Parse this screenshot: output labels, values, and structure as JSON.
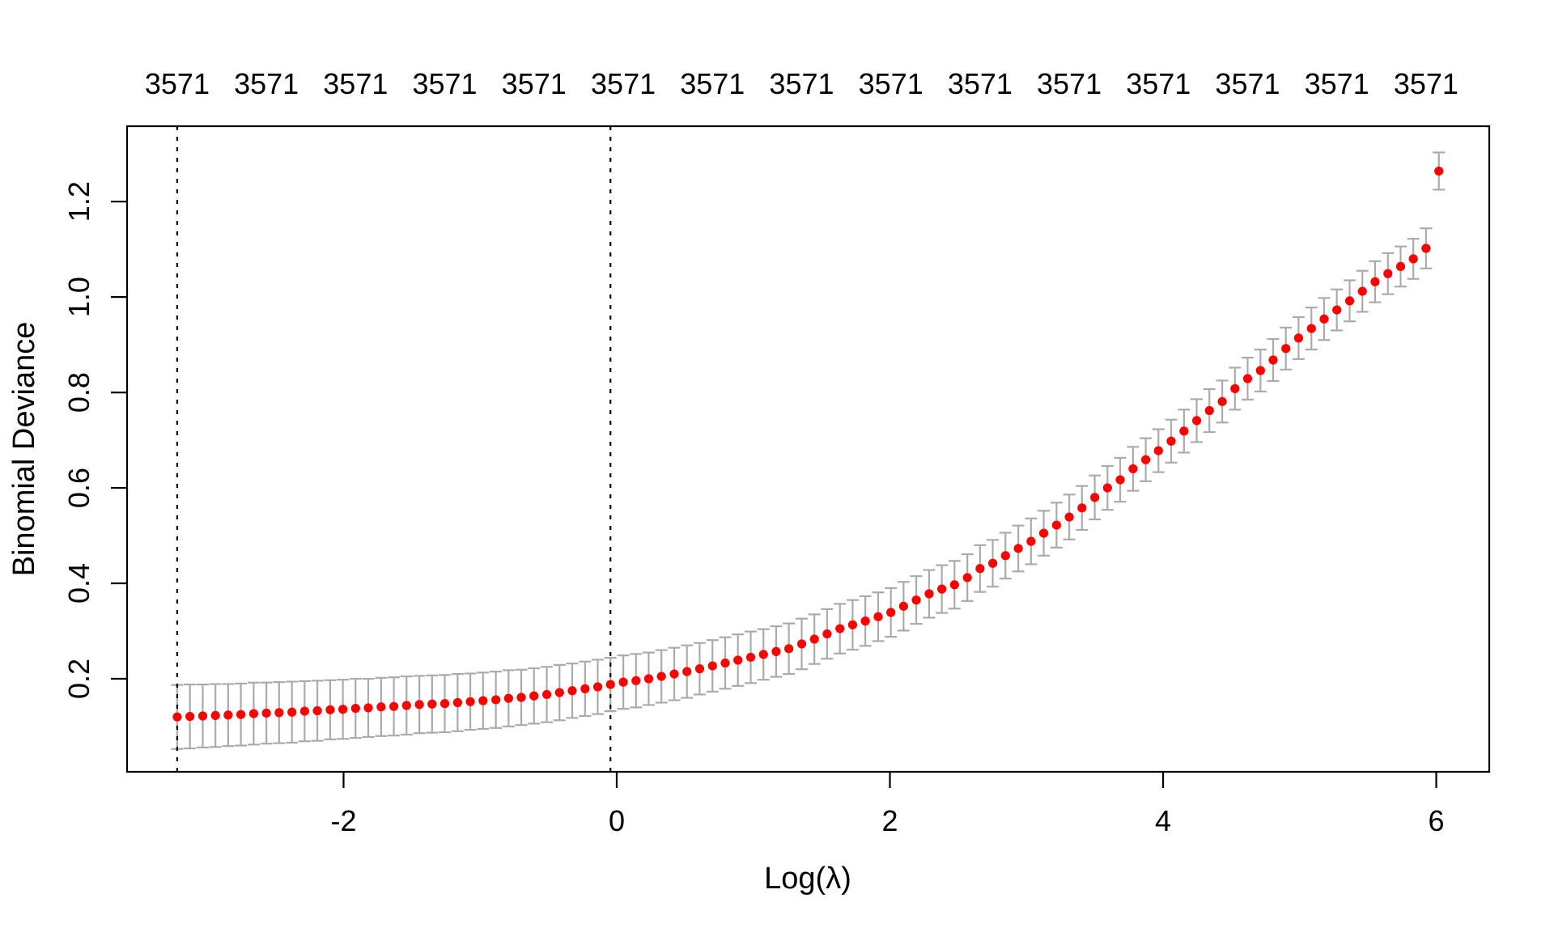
{
  "chart_data": {
    "type": "scatter",
    "title": "",
    "xlabel": "Log(λ)",
    "ylabel": "Binomial Deviance",
    "xlim": [
      -3.585,
      6.388
    ],
    "ylim": [
      0.005,
      1.358
    ],
    "grid": false,
    "legend_position": "none",
    "x_ticks": {
      "values": [
        -2,
        0,
        2,
        4,
        6
      ],
      "labels": [
        "-2",
        "0",
        "2",
        "4",
        "6"
      ]
    },
    "y_ticks": {
      "values": [
        0.2,
        0.4,
        0.6,
        0.8,
        1.0,
        1.2
      ],
      "labels": [
        "0.2",
        "0.4",
        "0.6",
        "0.8",
        "1.0",
        "1.2"
      ]
    },
    "top_axis": {
      "labels": [
        "3571",
        "3571",
        "3571",
        "3571",
        "3571",
        "3571",
        "3571",
        "3571",
        "3571",
        "3571",
        "3571",
        "3571",
        "3571",
        "3571",
        "3571"
      ],
      "x": [
        -3.218,
        -2.565,
        -1.912,
        -1.259,
        -0.606,
        0.048,
        0.701,
        1.354,
        2.007,
        2.66,
        3.313,
        3.966,
        4.619,
        5.272,
        5.925
      ]
    },
    "vlines": [
      {
        "name": "lambda-min-line",
        "x": -3.218,
        "style": "dotted",
        "color": "#000000"
      },
      {
        "name": "lambda-1se-line",
        "x": -0.046,
        "style": "dotted",
        "color": "#000000"
      }
    ],
    "colors": {
      "point": "#FF0000",
      "errorbar": "#ABABAB",
      "axis": "#000000"
    },
    "series": [
      {
        "name": "cv-mean-binomial-deviance",
        "x": [
          -3.218,
          -3.125,
          -3.031,
          -2.938,
          -2.845,
          -2.752,
          -2.658,
          -2.565,
          -2.472,
          -2.378,
          -2.285,
          -2.192,
          -2.098,
          -2.005,
          -1.912,
          -1.819,
          -1.725,
          -1.632,
          -1.539,
          -1.445,
          -1.352,
          -1.259,
          -1.165,
          -1.072,
          -0.979,
          -0.885,
          -0.792,
          -0.699,
          -0.606,
          -0.512,
          -0.419,
          -0.326,
          -0.232,
          -0.139,
          -0.046,
          0.048,
          0.141,
          0.234,
          0.327,
          0.421,
          0.514,
          0.607,
          0.701,
          0.794,
          0.887,
          0.981,
          1.074,
          1.167,
          1.26,
          1.354,
          1.447,
          1.54,
          1.634,
          1.727,
          1.82,
          1.914,
          2.007,
          2.1,
          2.193,
          2.287,
          2.38,
          2.473,
          2.567,
          2.66,
          2.753,
          2.846,
          2.94,
          3.033,
          3.126,
          3.22,
          3.313,
          3.406,
          3.5,
          3.593,
          3.686,
          3.78,
          3.873,
          3.966,
          4.059,
          4.153,
          4.246,
          4.339,
          4.433,
          4.526,
          4.619,
          4.713,
          4.806,
          4.899,
          4.992,
          5.086,
          5.179,
          5.272,
          5.366,
          5.459,
          5.552,
          5.646,
          5.739,
          5.832,
          5.925,
          6.019
        ],
        "y": [
          0.12,
          0.121,
          0.122,
          0.123,
          0.124,
          0.125,
          0.127,
          0.128,
          0.129,
          0.13,
          0.132,
          0.133,
          0.135,
          0.136,
          0.138,
          0.139,
          0.141,
          0.142,
          0.144,
          0.146,
          0.147,
          0.148,
          0.15,
          0.152,
          0.154,
          0.156,
          0.159,
          0.161,
          0.164,
          0.167,
          0.171,
          0.175,
          0.179,
          0.183,
          0.188,
          0.193,
          0.196,
          0.2,
          0.205,
          0.21,
          0.215,
          0.221,
          0.227,
          0.233,
          0.239,
          0.245,
          0.251,
          0.257,
          0.263,
          0.273,
          0.283,
          0.294,
          0.305,
          0.313,
          0.321,
          0.33,
          0.339,
          0.352,
          0.365,
          0.378,
          0.388,
          0.397,
          0.412,
          0.431,
          0.442,
          0.458,
          0.473,
          0.488,
          0.505,
          0.522,
          0.539,
          0.558,
          0.58,
          0.6,
          0.617,
          0.64,
          0.659,
          0.678,
          0.698,
          0.719,
          0.741,
          0.762,
          0.781,
          0.808,
          0.829,
          0.846,
          0.868,
          0.892,
          0.914,
          0.934,
          0.954,
          0.973,
          0.992,
          1.012,
          1.032,
          1.049,
          1.064,
          1.08,
          1.102,
          1.264
        ],
        "se": [
          0.067,
          0.067,
          0.066,
          0.066,
          0.065,
          0.065,
          0.065,
          0.064,
          0.064,
          0.064,
          0.063,
          0.063,
          0.062,
          0.062,
          0.062,
          0.061,
          0.061,
          0.061,
          0.061,
          0.06,
          0.06,
          0.06,
          0.06,
          0.059,
          0.059,
          0.059,
          0.059,
          0.058,
          0.058,
          0.058,
          0.058,
          0.057,
          0.057,
          0.057,
          0.056,
          0.056,
          0.056,
          0.055,
          0.055,
          0.055,
          0.055,
          0.054,
          0.054,
          0.054,
          0.054,
          0.054,
          0.053,
          0.053,
          0.053,
          0.053,
          0.052,
          0.052,
          0.052,
          0.052,
          0.052,
          0.051,
          0.051,
          0.051,
          0.05,
          0.05,
          0.05,
          0.05,
          0.049,
          0.049,
          0.049,
          0.048,
          0.048,
          0.048,
          0.047,
          0.047,
          0.047,
          0.046,
          0.046,
          0.046,
          0.046,
          0.046,
          0.045,
          0.045,
          0.045,
          0.045,
          0.045,
          0.045,
          0.044,
          0.044,
          0.044,
          0.044,
          0.044,
          0.044,
          0.044,
          0.044,
          0.044,
          0.043,
          0.043,
          0.043,
          0.043,
          0.043,
          0.042,
          0.042,
          0.042,
          0.039
        ]
      }
    ]
  }
}
